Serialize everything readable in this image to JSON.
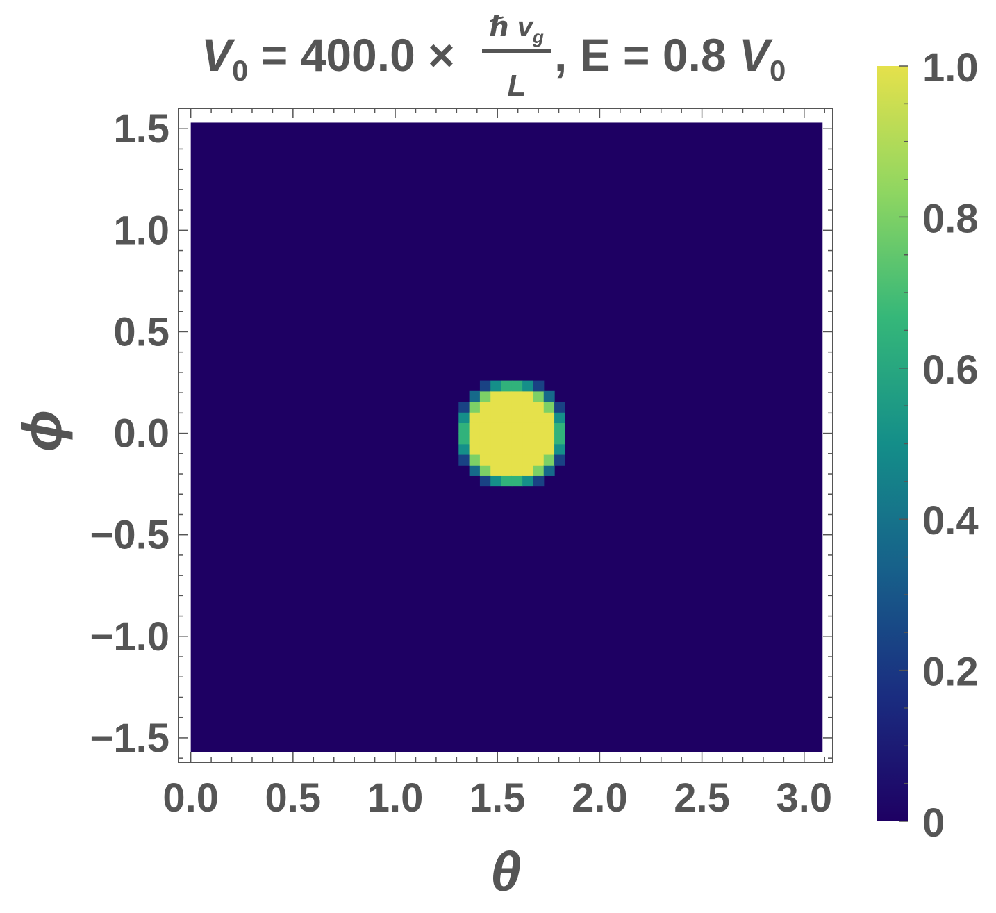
{
  "chart_data": {
    "type": "heatmap",
    "title": {
      "parts": [
        "V",
        "0",
        " = 400.0 × ",
        "ℏ v",
        "g",
        "L",
        ", E = 0.8 ",
        "V",
        "0"
      ]
    },
    "xlabel": "θ",
    "ylabel": "ϕ",
    "xlim": [
      -0.06,
      3.14
    ],
    "ylim": [
      -1.62,
      1.6
    ],
    "data_extent": {
      "x": [
        0,
        3.09
      ],
      "y": [
        -1.57,
        1.53
      ]
    },
    "x_ticks": [
      {
        "v": 0.0,
        "label": "0.0"
      },
      {
        "v": 0.5,
        "label": "0.5"
      },
      {
        "v": 1.0,
        "label": "1.0"
      },
      {
        "v": 1.5,
        "label": "1.5"
      },
      {
        "v": 2.0,
        "label": "2.0"
      },
      {
        "v": 2.5,
        "label": "2.5"
      },
      {
        "v": 3.0,
        "label": "3.0"
      }
    ],
    "y_ticks": [
      {
        "v": 1.5,
        "label": "1.5"
      },
      {
        "v": 1.0,
        "label": "1.0"
      },
      {
        "v": 0.5,
        "label": "0.5"
      },
      {
        "v": 0.0,
        "label": "0.0"
      },
      {
        "v": -0.5,
        "label": "−0.5"
      },
      {
        "v": -1.0,
        "label": "−1.0"
      },
      {
        "v": -1.5,
        "label": "−1.5"
      }
    ],
    "background_value": 0,
    "blob": {
      "center": [
        1.57,
        0.0
      ],
      "radius": 0.26,
      "step": 0.052,
      "peak_value": 1.0,
      "x_range": [
        1.31,
        1.83
      ],
      "y_range": [
        -0.26,
        0.26
      ]
    },
    "colorbar": {
      "range": [
        0,
        1
      ],
      "ticks": [
        {
          "v": 0,
          "label": "0"
        },
        {
          "v": 0.2,
          "label": "0.2"
        },
        {
          "v": 0.4,
          "label": "0.4"
        },
        {
          "v": 0.6,
          "label": "0.6"
        },
        {
          "v": 0.8,
          "label": "0.8"
        },
        {
          "v": 1.0,
          "label": "1.0"
        }
      ],
      "colormap": [
        "#1e0063",
        "#1a2d80",
        "#17608a",
        "#148e89",
        "#35b779",
        "#8fd661",
        "#e5e14b"
      ]
    }
  }
}
